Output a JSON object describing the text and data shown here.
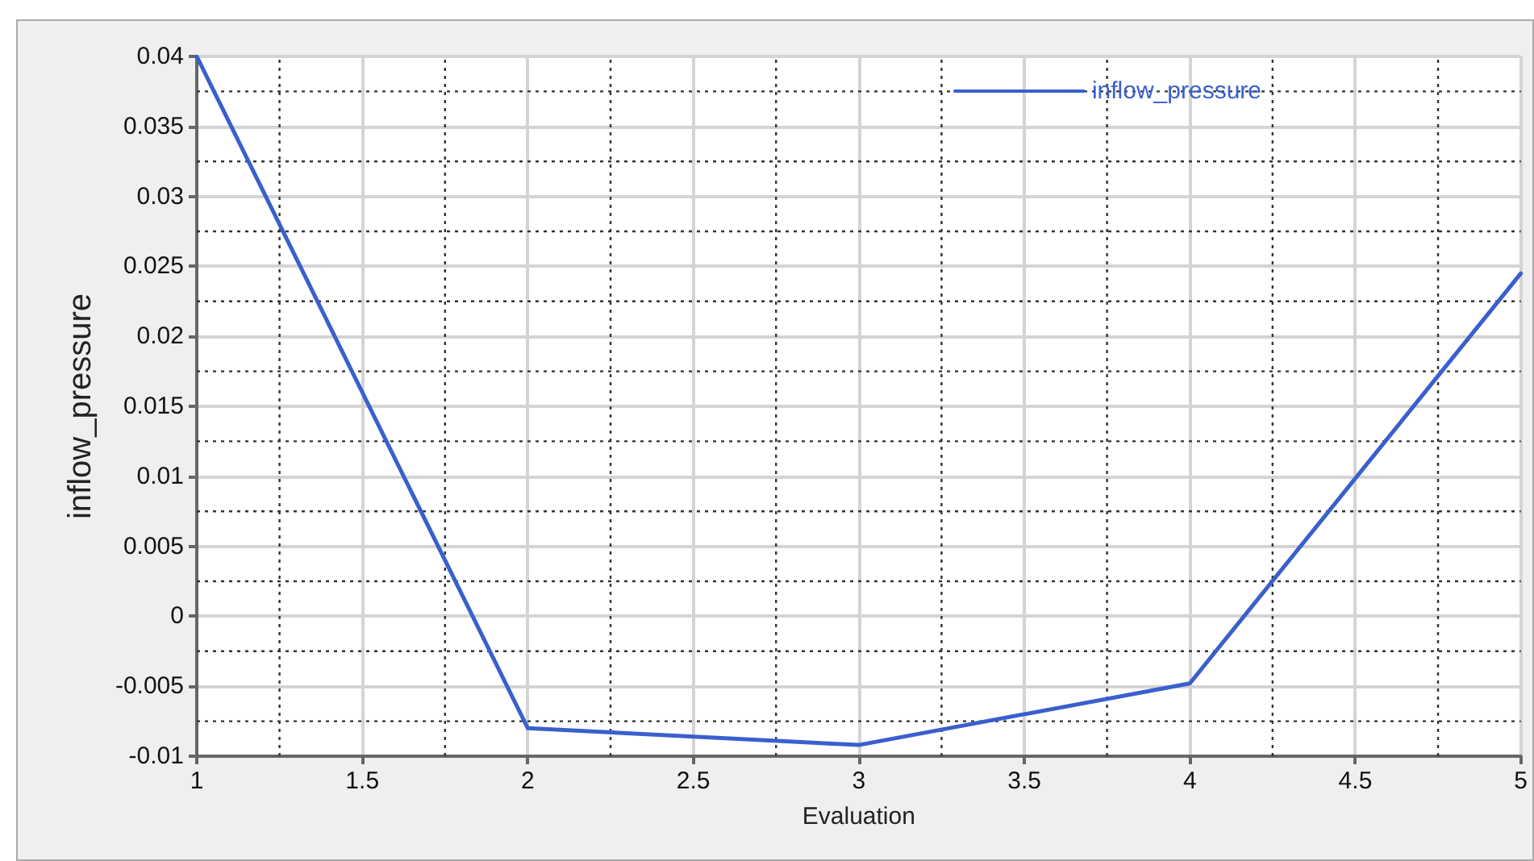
{
  "chart_data": {
    "type": "line",
    "xlabel": "Evaluation",
    "ylabel": "inflow_pressure",
    "x": [
      1,
      2,
      3,
      4,
      5
    ],
    "series": [
      {
        "name": "inflow_pressure",
        "color": "#3a5fcd",
        "values": [
          0.04,
          -0.008,
          -0.0092,
          -0.0048,
          0.0245
        ]
      }
    ],
    "xlim": [
      1,
      5
    ],
    "xticks": [
      1,
      1.5,
      2,
      2.5,
      3,
      3.5,
      4,
      4.5,
      5
    ],
    "ylim": [
      -0.01,
      0.04
    ],
    "yticks": [
      -0.01,
      -0.005,
      0,
      0.005,
      0.01,
      0.015,
      0.02,
      0.025,
      0.03,
      0.035,
      0.04
    ],
    "grid": true,
    "legend": "top right",
    "marker": "none",
    "line_style": "solid"
  }
}
